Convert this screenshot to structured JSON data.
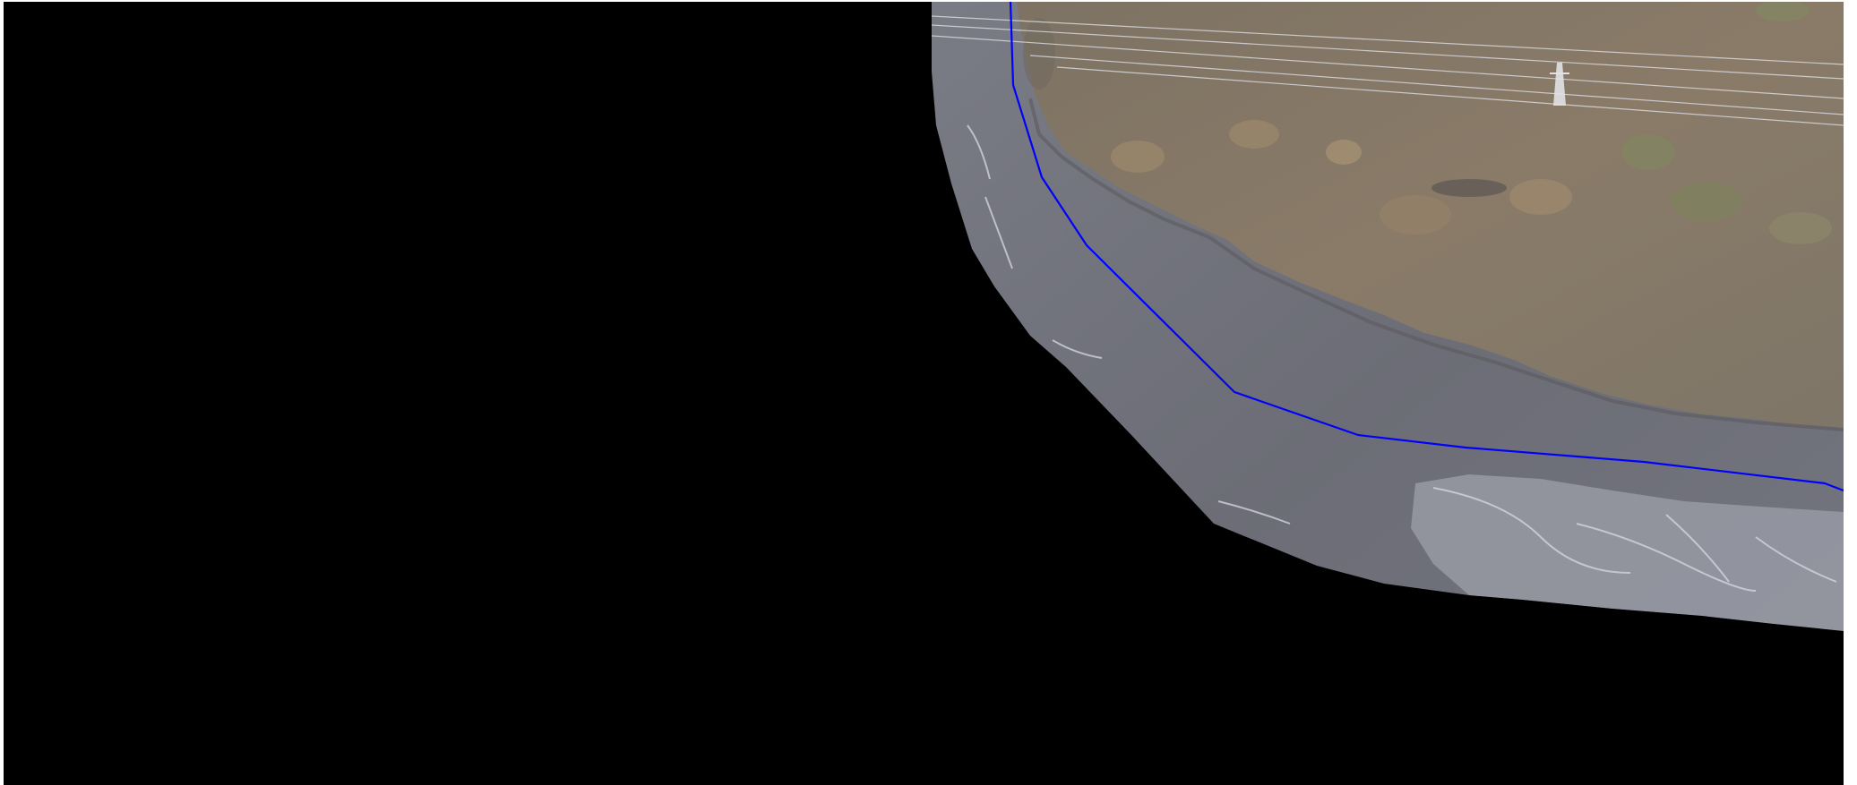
{
  "map": {
    "background_color": "#000000",
    "frame_color": "#ffffff",
    "layers": [
      {
        "name": "aerial-orthophoto",
        "kind": "raster",
        "description_colors": {
          "water": "#6f7079",
          "vegetation": "#8a7a66",
          "foam": "#c9ccd6"
        }
      },
      {
        "name": "river-centerline",
        "kind": "polyline",
        "stroke_color": "#0000ff"
      },
      {
        "name": "power-lines",
        "kind": "polyline",
        "stroke_color": "#d8d8dc"
      }
    ]
  }
}
